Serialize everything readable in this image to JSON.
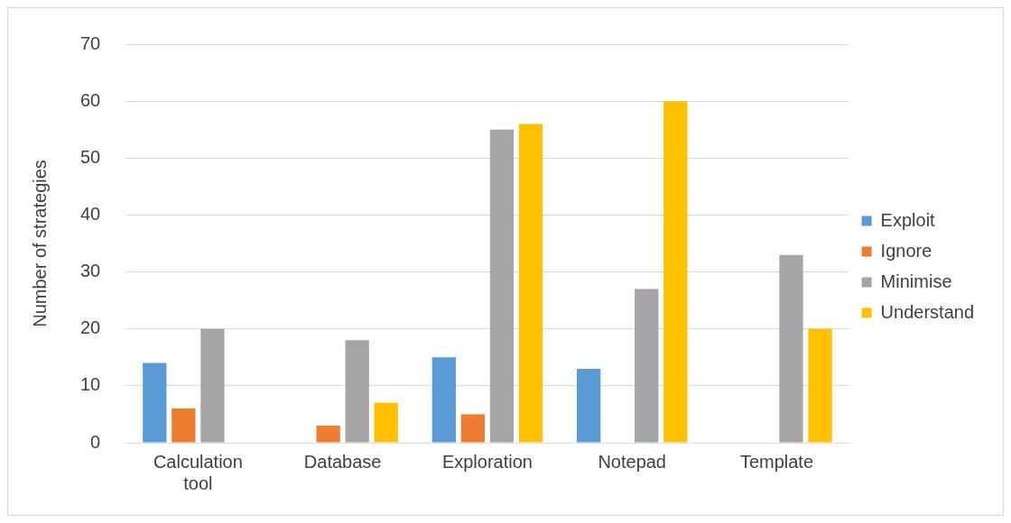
{
  "chart_data": {
    "type": "bar",
    "ylabel": "Number of strategies",
    "categories": [
      "Calculation tool",
      "Database",
      "Exploration",
      "Notepad",
      "Template"
    ],
    "series": [
      {
        "name": "Exploit",
        "color": "#5b9bd5",
        "values": [
          14,
          0,
          15,
          13,
          0
        ]
      },
      {
        "name": "Ignore",
        "color": "#ed7d31",
        "values": [
          6,
          3,
          5,
          0,
          0
        ]
      },
      {
        "name": "Minimise",
        "color": "#a5a5a5",
        "values": [
          20,
          18,
          55,
          27,
          33
        ]
      },
      {
        "name": "Understand",
        "color": "#ffc000",
        "values": [
          0,
          7,
          56,
          60,
          20
        ]
      }
    ],
    "ylim": [
      0,
      70
    ],
    "yticks": [
      0,
      10,
      20,
      30,
      40,
      50,
      60,
      70
    ],
    "grid": "y",
    "legend": "right"
  }
}
